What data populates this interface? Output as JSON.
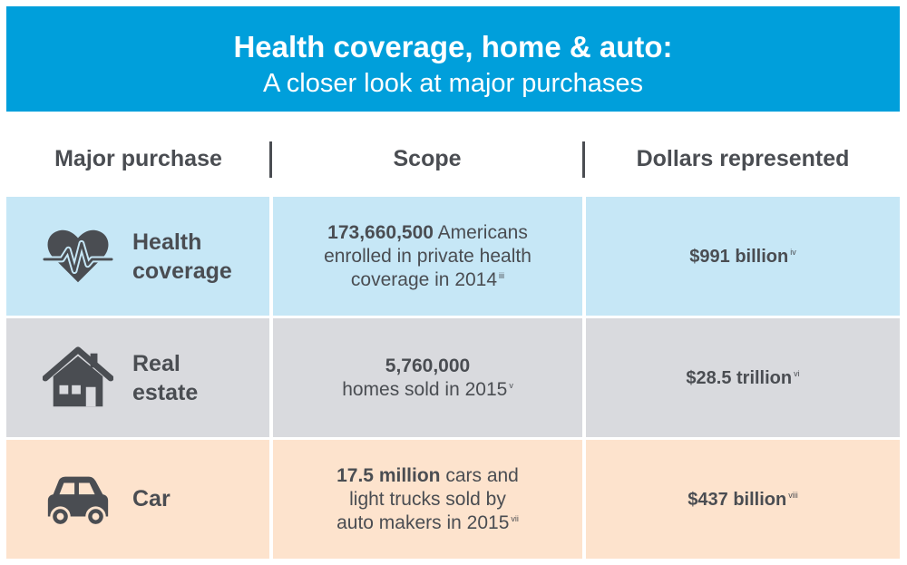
{
  "banner": {
    "title": "Health coverage, home & auto:",
    "subtitle": "A closer look at major purchases"
  },
  "headers": {
    "col1": "Major purchase",
    "col2": "Scope",
    "col3": "Dollars represented"
  },
  "rows": [
    {
      "icon": "heart-pulse-icon",
      "category_line1": "Health",
      "category_line2": "coverage",
      "scope_bold": "173,660,500",
      "scope_line1_rest": " Americans",
      "scope_line2": "enrolled in private health",
      "scope_line3": "coverage in 2014",
      "scope_note": "iii",
      "dollars": "$991 billion",
      "dollars_note": "iv"
    },
    {
      "icon": "house-icon",
      "category_line1": "Real",
      "category_line2": "estate",
      "scope_bold": "5,760,000",
      "scope_line2": "homes sold in 2015",
      "scope_note": "v",
      "dollars": "$28.5 trillion",
      "dollars_note": "vi"
    },
    {
      "icon": "car-icon",
      "category": "Car",
      "scope_bold": "17.5 million",
      "scope_line1_rest": " cars and",
      "scope_line2": "light trucks sold by",
      "scope_line3": "auto makers in 2015",
      "scope_note": "vii",
      "dollars": "$437 billion",
      "dollars_note": "viii"
    }
  ],
  "colors": {
    "banner": "#009fdb",
    "health_row": "#c6e7f6",
    "real_estate_row": "#d9dade",
    "car_row": "#fde3cd",
    "text": "#4a4d52"
  }
}
